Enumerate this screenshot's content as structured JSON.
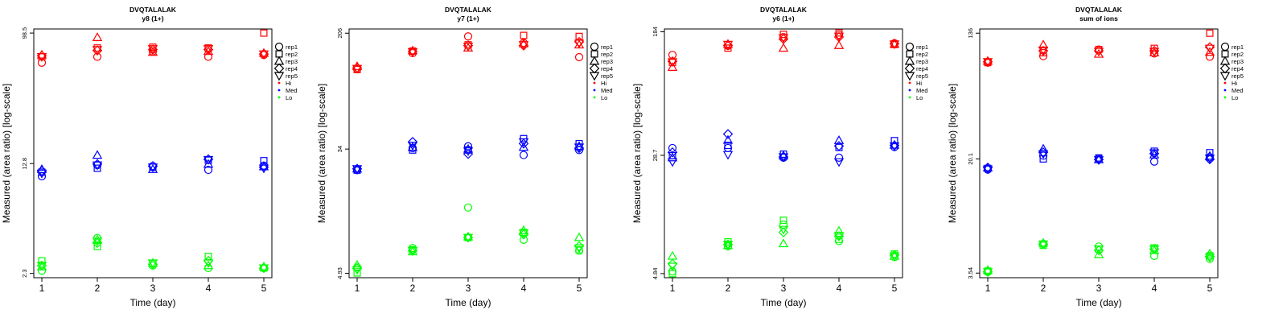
{
  "figure": {
    "marker_legend": [
      "rep1",
      "rep2",
      "rep3",
      "rep4",
      "rep5"
    ],
    "marker_shapes": [
      "circle",
      "square",
      "triangle-up",
      "diamond",
      "triangle-down"
    ],
    "color_legend": [
      "Hi",
      "Med",
      "Lo"
    ],
    "colors": {
      "Hi": "#ff0000",
      "Med": "#0000ff",
      "Lo": "#00ff00"
    }
  },
  "chart_data": [
    {
      "type": "scatter",
      "title": "DVQTALALAK",
      "subtitle": "y8 (1+)",
      "xlabel": "Time (day)",
      "ylabel": "Measured (area ratio) [log-scale]",
      "y_scale": "log",
      "x_ticks": [
        "1",
        "2",
        "3",
        "4",
        "5"
      ],
      "y_tick_labels": [
        "2.3",
        "12.8",
        "98.5"
      ],
      "y_tick_values": [
        2.3,
        12.8,
        98.5
      ],
      "ylim": [
        2.15,
        105
      ],
      "series": [
        {
          "group": "Hi",
          "rep": "rep1",
          "x": [
            1,
            2,
            3,
            4,
            5
          ],
          "y": [
            62,
            68,
            74,
            68,
            70
          ]
        },
        {
          "group": "Hi",
          "rep": "rep2",
          "x": [
            1,
            2,
            3,
            4,
            5
          ],
          "y": [
            68,
            78,
            79,
            78,
            98.5
          ]
        },
        {
          "group": "Hi",
          "rep": "rep3",
          "x": [
            1,
            2,
            3,
            4,
            5
          ],
          "y": [
            70,
            92,
            73,
            74,
            72
          ]
        },
        {
          "group": "Hi",
          "rep": "rep4",
          "x": [
            1,
            2,
            3,
            4,
            5
          ],
          "y": [
            69,
            75,
            76,
            76,
            71
          ]
        },
        {
          "group": "Hi",
          "rep": "rep5",
          "x": [
            1,
            2,
            3,
            4,
            5
          ],
          "y": [
            68,
            76,
            77,
            77,
            71
          ]
        },
        {
          "group": "Med",
          "rep": "rep1",
          "x": [
            1,
            2,
            3,
            4,
            5
          ],
          "y": [
            10.5,
            12.5,
            12.3,
            11.6,
            12.4
          ]
        },
        {
          "group": "Med",
          "rep": "rep2",
          "x": [
            1,
            2,
            3,
            4,
            5
          ],
          "y": [
            11.2,
            11.9,
            12.1,
            13.5,
            13.4
          ]
        },
        {
          "group": "Med",
          "rep": "rep3",
          "x": [
            1,
            2,
            3,
            4,
            5
          ],
          "y": [
            11.7,
            14.6,
            11.7,
            12.7,
            12.2
          ]
        },
        {
          "group": "Med",
          "rep": "rep4",
          "x": [
            1,
            2,
            3,
            4,
            5
          ],
          "y": [
            11.4,
            12.7,
            12.3,
            13.7,
            12.1
          ]
        },
        {
          "group": "Med",
          "rep": "rep5",
          "x": [
            1,
            2,
            3,
            4,
            5
          ],
          "y": [
            11.0,
            12.5,
            12.1,
            13.6,
            11.9
          ]
        },
        {
          "group": "Lo",
          "rep": "rep1",
          "x": [
            1,
            2,
            3,
            4,
            5
          ],
          "y": [
            2.4,
            4.0,
            2.6,
            2.5,
            2.5
          ]
        },
        {
          "group": "Lo",
          "rep": "rep2",
          "x": [
            1,
            2,
            3,
            4,
            5
          ],
          "y": [
            2.8,
            3.5,
            2.7,
            3.0,
            2.5
          ]
        },
        {
          "group": "Lo",
          "rep": "rep3",
          "x": [
            1,
            2,
            3,
            4,
            5
          ],
          "y": [
            2.55,
            3.9,
            2.7,
            2.6,
            2.55
          ]
        },
        {
          "group": "Lo",
          "rep": "rep4",
          "x": [
            1,
            2,
            3,
            4,
            5
          ],
          "y": [
            2.6,
            3.7,
            2.65,
            2.8,
            2.5
          ]
        },
        {
          "group": "Lo",
          "rep": "rep5",
          "x": [
            1,
            2,
            3,
            4,
            5
          ],
          "y": [
            2.6,
            3.8,
            2.7,
            2.7,
            2.5
          ]
        }
      ]
    },
    {
      "type": "scatter",
      "title": "DVQTALALAK",
      "subtitle": "y7 (1+)",
      "xlabel": "Time (day)",
      "ylabel": "Measured (area ratio) [log-scale]",
      "y_scale": "log",
      "x_ticks": [
        "1",
        "2",
        "3",
        "4",
        "5"
      ],
      "y_tick_labels": [
        "4.93",
        "34",
        "206"
      ],
      "y_tick_values": [
        4.93,
        34,
        206
      ],
      "ylim": [
        4.6,
        220
      ],
      "series": [
        {
          "group": "Hi",
          "rep": "rep1",
          "x": [
            1,
            2,
            3,
            4,
            5
          ],
          "y": [
            118,
            151,
            196,
            177,
            142
          ]
        },
        {
          "group": "Hi",
          "rep": "rep2",
          "x": [
            1,
            2,
            3,
            4,
            5
          ],
          "y": [
            117,
            156,
            172,
            199,
            196
          ]
        },
        {
          "group": "Hi",
          "rep": "rep3",
          "x": [
            1,
            2,
            3,
            4,
            5
          ],
          "y": [
            123,
            157,
            164,
            175,
            172
          ]
        },
        {
          "group": "Hi",
          "rep": "rep4",
          "x": [
            1,
            2,
            3,
            4,
            5
          ],
          "y": [
            120,
            155,
            170,
            170,
            180
          ]
        },
        {
          "group": "Hi",
          "rep": "rep5",
          "x": [
            1,
            2,
            3,
            4,
            5
          ],
          "y": [
            119,
            154,
            168,
            172,
            176
          ]
        },
        {
          "group": "Med",
          "rep": "rep1",
          "x": [
            1,
            2,
            3,
            4,
            5
          ],
          "y": [
            24.5,
            34.5,
            35.5,
            31,
            33.5
          ]
        },
        {
          "group": "Med",
          "rep": "rep2",
          "x": [
            1,
            2,
            3,
            4,
            5
          ],
          "y": [
            24.5,
            33.5,
            33.5,
            40,
            37
          ]
        },
        {
          "group": "Med",
          "rep": "rep3",
          "x": [
            1,
            2,
            3,
            4,
            5
          ],
          "y": [
            25,
            35,
            34,
            35,
            35.5
          ]
        },
        {
          "group": "Med",
          "rep": "rep4",
          "x": [
            1,
            2,
            3,
            4,
            5
          ],
          "y": [
            25,
            38,
            31.5,
            37,
            34.5
          ]
        },
        {
          "group": "Med",
          "rep": "rep5",
          "x": [
            1,
            2,
            3,
            4,
            5
          ],
          "y": [
            25,
            36,
            33,
            38,
            35
          ]
        },
        {
          "group": "Lo",
          "rep": "rep1",
          "x": [
            1,
            2,
            3,
            4,
            5
          ],
          "y": [
            5.4,
            7.3,
            13.7,
            8.3,
            7.0
          ]
        },
        {
          "group": "Lo",
          "rep": "rep2",
          "x": [
            1,
            2,
            3,
            4,
            5
          ],
          "y": [
            4.95,
            7.1,
            8.6,
            9.3,
            7.1
          ]
        },
        {
          "group": "Lo",
          "rep": "rep3",
          "x": [
            1,
            2,
            3,
            4,
            5
          ],
          "y": [
            5.6,
            6.9,
            8.7,
            9.6,
            8.6
          ]
        },
        {
          "group": "Lo",
          "rep": "rep4",
          "x": [
            1,
            2,
            3,
            4,
            5
          ],
          "y": [
            5.3,
            7.0,
            8.6,
            9.0,
            7.5
          ]
        },
        {
          "group": "Lo",
          "rep": "rep5",
          "x": [
            1,
            2,
            3,
            4,
            5
          ],
          "y": [
            5.2,
            7.0,
            8.6,
            9.2,
            7.3
          ]
        }
      ]
    },
    {
      "type": "scatter",
      "title": "DVQTALALAK",
      "subtitle": "y6 (1+)",
      "xlabel": "Time (day)",
      "ylabel": "Measured (area ratio) [log-scale]",
      "y_scale": "log",
      "x_ticks": [
        "1",
        "2",
        "3",
        "4",
        "5"
      ],
      "y_tick_labels": [
        "4.84",
        "28.7",
        "184"
      ],
      "y_tick_values": [
        4.84,
        28.7,
        184
      ],
      "ylim": [
        4.55,
        192
      ],
      "series": [
        {
          "group": "Hi",
          "rep": "rep1",
          "x": [
            1,
            2,
            3,
            4,
            5
          ],
          "y": [
            130,
            149,
            170,
            176,
            155
          ]
        },
        {
          "group": "Hi",
          "rep": "rep2",
          "x": [
            1,
            2,
            3,
            4,
            5
          ],
          "y": [
            116,
            144,
            177,
            181,
            152
          ]
        },
        {
          "group": "Hi",
          "rep": "rep3",
          "x": [
            1,
            2,
            3,
            4,
            5
          ],
          "y": [
            108,
            153,
            144,
            150,
            153
          ]
        },
        {
          "group": "Hi",
          "rep": "rep4",
          "x": [
            1,
            2,
            3,
            4,
            5
          ],
          "y": [
            118,
            150,
            165,
            170,
            154
          ]
        },
        {
          "group": "Hi",
          "rep": "rep5",
          "x": [
            1,
            2,
            3,
            4,
            5
          ],
          "y": [
            117,
            152,
            168,
            172,
            153
          ]
        },
        {
          "group": "Med",
          "rep": "rep1",
          "x": [
            1,
            2,
            3,
            4,
            5
          ],
          "y": [
            32,
            32,
            27.7,
            27.7,
            32.5
          ]
        },
        {
          "group": "Med",
          "rep": "rep2",
          "x": [
            1,
            2,
            3,
            4,
            5
          ],
          "y": [
            28.5,
            33.3,
            29.2,
            32.3,
            35.8
          ]
        },
        {
          "group": "Med",
          "rep": "rep3",
          "x": [
            1,
            2,
            3,
            4,
            5
          ],
          "y": [
            27.7,
            36.1,
            28.5,
            35.9,
            33.5
          ]
        },
        {
          "group": "Med",
          "rep": "rep4",
          "x": [
            1,
            2,
            3,
            4,
            5
          ],
          "y": [
            30,
            39.5,
            28,
            33,
            33.3
          ]
        },
        {
          "group": "Med",
          "rep": "rep5",
          "x": [
            1,
            2,
            3,
            4,
            5
          ],
          "y": [
            26,
            29,
            28,
            26,
            33
          ]
        },
        {
          "group": "Lo",
          "rep": "rep1",
          "x": [
            1,
            2,
            3,
            4,
            5
          ],
          "y": [
            5.0,
            7.3,
            10.1,
            7.9,
            6.2
          ]
        },
        {
          "group": "Lo",
          "rep": "rep2",
          "x": [
            1,
            2,
            3,
            4,
            5
          ],
          "y": [
            4.84,
            7.8,
            10.8,
            8.1,
            6.5
          ]
        },
        {
          "group": "Lo",
          "rep": "rep3",
          "x": [
            1,
            2,
            3,
            4,
            5
          ],
          "y": [
            6.3,
            7.4,
            7.6,
            9.2,
            6.3
          ]
        },
        {
          "group": "Lo",
          "rep": "rep4",
          "x": [
            1,
            2,
            3,
            4,
            5
          ],
          "y": [
            5.6,
            7.5,
            9.0,
            8.5,
            6.4
          ]
        },
        {
          "group": "Lo",
          "rep": "rep5",
          "x": [
            1,
            2,
            3,
            4,
            5
          ],
          "y": [
            5.4,
            7.5,
            9.4,
            8.6,
            6.3
          ]
        }
      ]
    },
    {
      "type": "scatter",
      "title": "DVQTALALAK",
      "subtitle": "sum of ions",
      "xlabel": "Time (day)",
      "ylabel": "Measured (area ratio) [log-scale]",
      "y_scale": "log",
      "x_ticks": [
        "1",
        "2",
        "3",
        "4",
        "5"
      ],
      "y_tick_labels": [
        "3.54",
        "20.1",
        "136"
      ],
      "y_tick_values": [
        3.54,
        20.1,
        136
      ],
      "ylim": [
        3.3,
        145
      ],
      "series": [
        {
          "group": "Hi",
          "rep": "rep1",
          "x": [
            1,
            2,
            3,
            4,
            5
          ],
          "y": [
            87,
            96,
            106,
            100,
            95
          ]
        },
        {
          "group": "Hi",
          "rep": "rep2",
          "x": [
            1,
            2,
            3,
            4,
            5
          ],
          "y": [
            87,
            101,
            106,
            108,
            136
          ]
        },
        {
          "group": "Hi",
          "rep": "rep3",
          "x": [
            1,
            2,
            3,
            4,
            5
          ],
          "y": [
            89,
            114,
            99,
            101,
            102
          ]
        },
        {
          "group": "Hi",
          "rep": "rep4",
          "x": [
            1,
            2,
            3,
            4,
            5
          ],
          "y": [
            88,
            104,
            104,
            104,
            110
          ]
        },
        {
          "group": "Hi",
          "rep": "rep5",
          "x": [
            1,
            2,
            3,
            4,
            5
          ],
          "y": [
            88,
            105,
            103,
            103,
            108
          ]
        },
        {
          "group": "Med",
          "rep": "rep1",
          "x": [
            1,
            2,
            3,
            4,
            5
          ],
          "y": [
            17.1,
            21.1,
            20.2,
            19.3,
            20.6
          ]
        },
        {
          "group": "Med",
          "rep": "rep2",
          "x": [
            1,
            2,
            3,
            4,
            5
          ],
          "y": [
            17.4,
            20.1,
            20.4,
            22.6,
            22.1
          ]
        },
        {
          "group": "Med",
          "rep": "rep3",
          "x": [
            1,
            2,
            3,
            4,
            5
          ],
          "y": [
            17.6,
            23.4,
            19.9,
            21.4,
            21
          ]
        },
        {
          "group": "Med",
          "rep": "rep4",
          "x": [
            1,
            2,
            3,
            4,
            5
          ],
          "y": [
            17.6,
            22.2,
            19.9,
            21.8,
            20
          ]
        },
        {
          "group": "Med",
          "rep": "rep5",
          "x": [
            1,
            2,
            3,
            4,
            5
          ],
          "y": [
            17.2,
            21.7,
            19.8,
            22.0,
            20.3
          ]
        },
        {
          "group": "Lo",
          "rep": "rep1",
          "x": [
            1,
            2,
            3,
            4,
            5
          ],
          "y": [
            3.6,
            5.5,
            5.3,
            4.6,
            4.4
          ]
        },
        {
          "group": "Lo",
          "rep": "rep2",
          "x": [
            1,
            2,
            3,
            4,
            5
          ],
          "y": [
            3.65,
            5.4,
            5.1,
            5.2,
            4.6
          ]
        },
        {
          "group": "Lo",
          "rep": "rep3",
          "x": [
            1,
            2,
            3,
            4,
            5
          ],
          "y": [
            3.7,
            5.6,
            4.7,
            5.0,
            4.75
          ]
        },
        {
          "group": "Lo",
          "rep": "rep4",
          "x": [
            1,
            2,
            3,
            4,
            5
          ],
          "y": [
            3.62,
            5.5,
            5.0,
            5.1,
            4.55
          ]
        },
        {
          "group": "Lo",
          "rep": "rep5",
          "x": [
            1,
            2,
            3,
            4,
            5
          ],
          "y": [
            3.6,
            5.5,
            5.1,
            5.1,
            4.5
          ]
        }
      ]
    }
  ]
}
